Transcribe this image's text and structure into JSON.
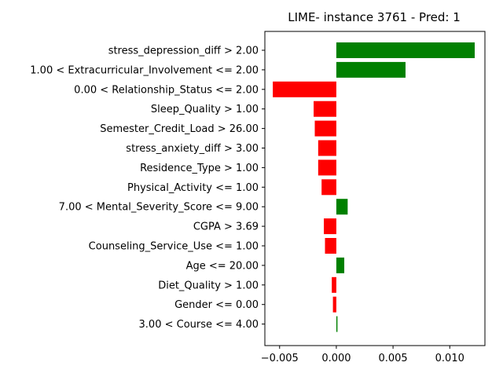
{
  "chart_data": {
    "type": "bar",
    "orientation": "horizontal",
    "title": "LIME- instance 3761 - Pred: 1",
    "xlabel": "",
    "ylabel": "",
    "xlim": [
      -0.0063,
      0.0131
    ],
    "xticks": [
      -0.005,
      0.0,
      0.005,
      0.01
    ],
    "xtick_labels": [
      "−0.005",
      "0.000",
      "0.005",
      "0.010"
    ],
    "grid": false,
    "positive_color": "#008000",
    "negative_color": "#ff0000",
    "categories": [
      "stress_depression_diff > 2.00",
      "1.00 < Extracurricular_Involvement <= 2.00",
      "0.00 < Relationship_Status <= 2.00",
      "Sleep_Quality > 1.00",
      "Semester_Credit_Load > 26.00",
      "stress_anxiety_diff > 3.00",
      "Residence_Type > 1.00",
      "Physical_Activity <= 1.00",
      "7.00 < Mental_Severity_Score <= 9.00",
      "CGPA > 3.69",
      "Counseling_Service_Use <= 1.00",
      "Age <= 20.00",
      "Diet_Quality > 1.00",
      "Gender <= 0.00",
      "3.00 < Course <= 4.00"
    ],
    "values": [
      0.0122,
      0.0061,
      -0.0056,
      -0.002,
      -0.0019,
      -0.0016,
      -0.0016,
      -0.0013,
      0.001,
      -0.0011,
      -0.001,
      0.0007,
      -0.0004,
      -0.0003,
      0.0001
    ]
  }
}
